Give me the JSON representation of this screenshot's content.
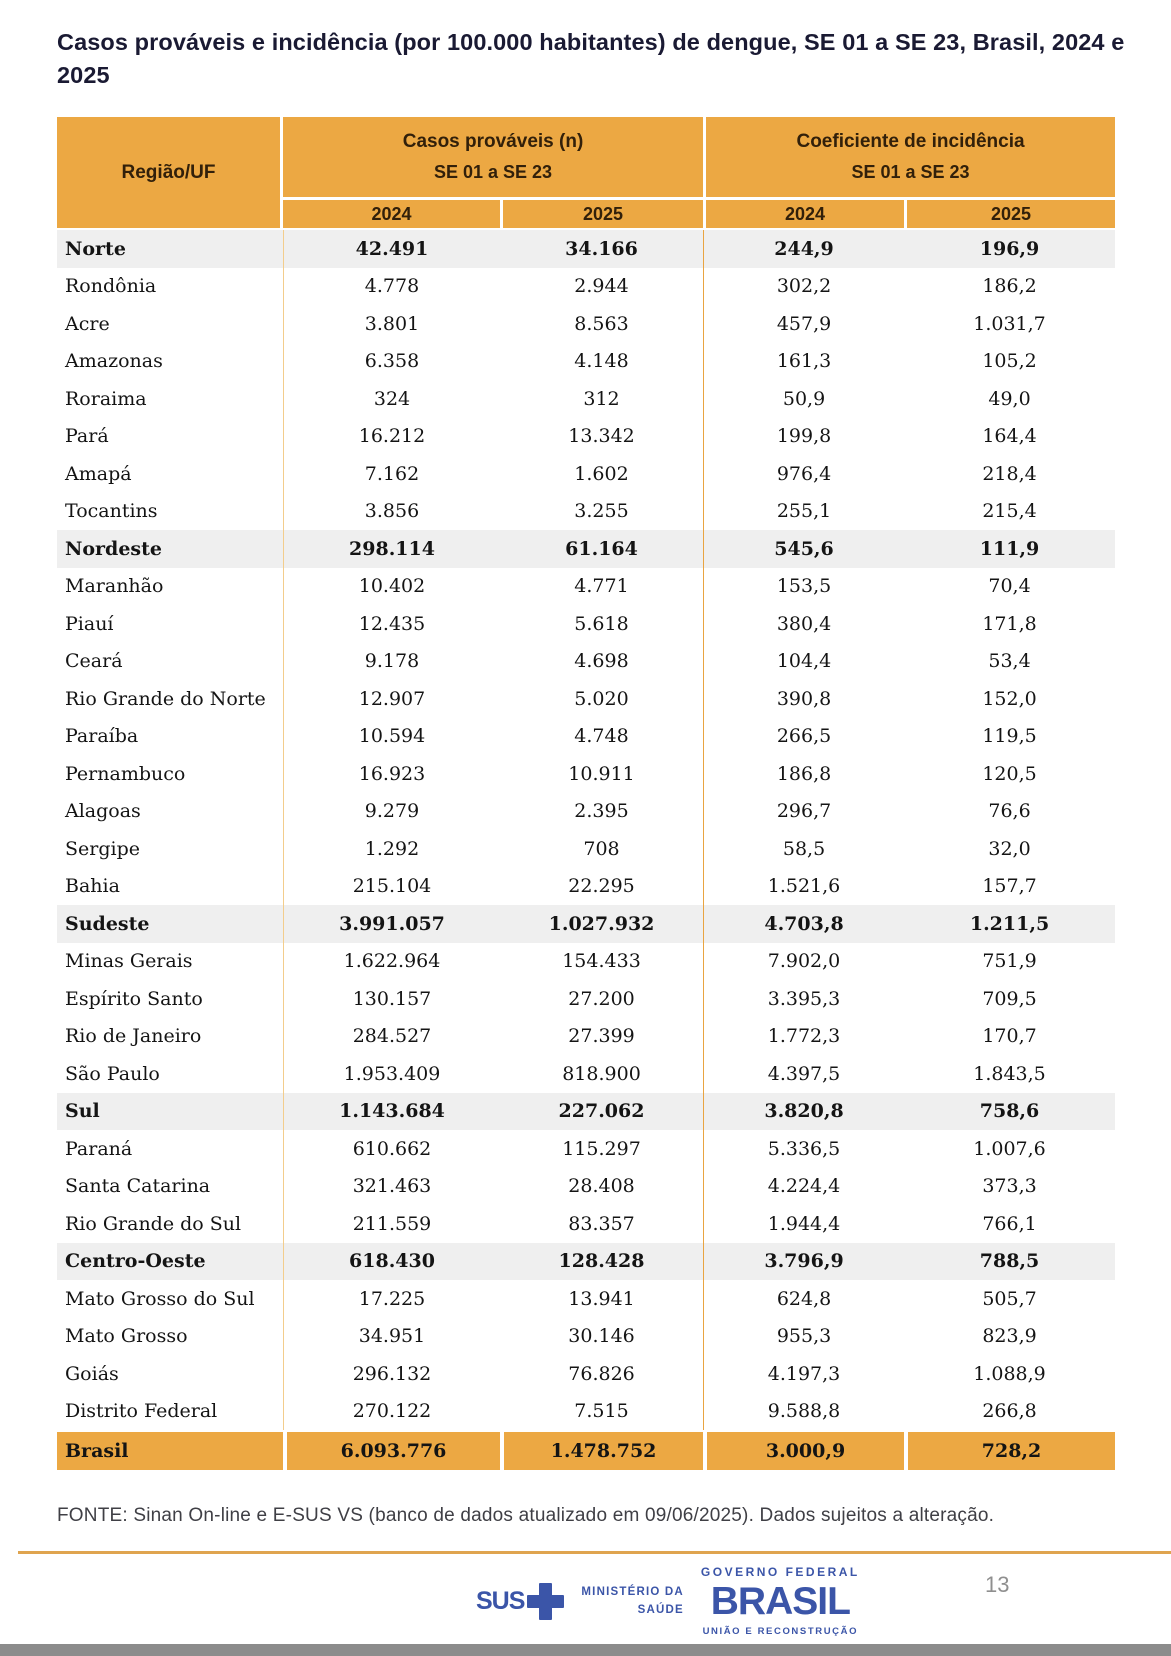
{
  "title": "Casos prováveis e incidência (por 100.000 habitantes) de dengue, SE 01 a SE 23, Brasil, 2024 e 2025",
  "table": {
    "col_region": "Região/UF",
    "group1_title": "Casos prováveis (n)",
    "group1_sub": "SE 01 a SE 23",
    "group2_title": "Coeficiente de incidência",
    "group2_sub": "SE 01 a SE 23",
    "years": [
      "2024",
      "2025",
      "2024",
      "2025"
    ],
    "rows": [
      {
        "id": "norte",
        "type": "region",
        "region": "Norte",
        "values": [
          "42.491",
          "34.166",
          "244,9",
          "196,9"
        ]
      },
      {
        "id": "rondonia",
        "type": "state",
        "region": "Rondônia",
        "values": [
          "4.778",
          "2.944",
          "302,2",
          "186,2"
        ]
      },
      {
        "id": "acre",
        "type": "state",
        "region": "Acre",
        "values": [
          "3.801",
          "8.563",
          "457,9",
          "1.031,7"
        ]
      },
      {
        "id": "amazonas",
        "type": "state",
        "region": "Amazonas",
        "values": [
          "6.358",
          "4.148",
          "161,3",
          "105,2"
        ]
      },
      {
        "id": "roraima",
        "type": "state",
        "region": "Roraima",
        "values": [
          "324",
          "312",
          "50,9",
          "49,0"
        ]
      },
      {
        "id": "para",
        "type": "state",
        "region": "Pará",
        "values": [
          "16.212",
          "13.342",
          "199,8",
          "164,4"
        ]
      },
      {
        "id": "amapa",
        "type": "state",
        "region": "Amapá",
        "values": [
          "7.162",
          "1.602",
          "976,4",
          "218,4"
        ]
      },
      {
        "id": "tocantins",
        "type": "state",
        "region": "Tocantins",
        "values": [
          "3.856",
          "3.255",
          "255,1",
          "215,4"
        ]
      },
      {
        "id": "nordeste",
        "type": "region",
        "region": "Nordeste",
        "values": [
          "298.114",
          "61.164",
          "545,6",
          "111,9"
        ]
      },
      {
        "id": "maranhao",
        "type": "state",
        "region": "Maranhão",
        "values": [
          "10.402",
          "4.771",
          "153,5",
          "70,4"
        ]
      },
      {
        "id": "piaui",
        "type": "state",
        "region": "Piauí",
        "values": [
          "12.435",
          "5.618",
          "380,4",
          "171,8"
        ]
      },
      {
        "id": "ceara",
        "type": "state",
        "region": "Ceará",
        "values": [
          "9.178",
          "4.698",
          "104,4",
          "53,4"
        ]
      },
      {
        "id": "rio-grande-do-norte",
        "type": "state",
        "region": "Rio Grande do Norte",
        "values": [
          "12.907",
          "5.020",
          "390,8",
          "152,0"
        ]
      },
      {
        "id": "paraiba",
        "type": "state",
        "region": "Paraíba",
        "values": [
          "10.594",
          "4.748",
          "266,5",
          "119,5"
        ]
      },
      {
        "id": "pernambuco",
        "type": "state",
        "region": "Pernambuco",
        "values": [
          "16.923",
          "10.911",
          "186,8",
          "120,5"
        ]
      },
      {
        "id": "alagoas",
        "type": "state",
        "region": "Alagoas",
        "values": [
          "9.279",
          "2.395",
          "296,7",
          "76,6"
        ]
      },
      {
        "id": "sergipe",
        "type": "state",
        "region": "Sergipe",
        "values": [
          "1.292",
          "708",
          "58,5",
          "32,0"
        ]
      },
      {
        "id": "bahia",
        "type": "state",
        "region": "Bahia",
        "values": [
          "215.104",
          "22.295",
          "1.521,6",
          "157,7"
        ]
      },
      {
        "id": "sudeste",
        "type": "region",
        "region": "Sudeste",
        "values": [
          "3.991.057",
          "1.027.932",
          "4.703,8",
          "1.211,5"
        ]
      },
      {
        "id": "minas-gerais",
        "type": "state",
        "region": "Minas Gerais",
        "values": [
          "1.622.964",
          "154.433",
          "7.902,0",
          "751,9"
        ]
      },
      {
        "id": "espirito-santo",
        "type": "state",
        "region": "Espírito Santo",
        "values": [
          "130.157",
          "27.200",
          "3.395,3",
          "709,5"
        ]
      },
      {
        "id": "rio-de-janeiro",
        "type": "state",
        "region": "Rio de Janeiro",
        "values": [
          "284.527",
          "27.399",
          "1.772,3",
          "170,7"
        ]
      },
      {
        "id": "sao-paulo",
        "type": "state",
        "region": "São Paulo",
        "values": [
          "1.953.409",
          "818.900",
          "4.397,5",
          "1.843,5"
        ]
      },
      {
        "id": "sul",
        "type": "region",
        "region": "Sul",
        "values": [
          "1.143.684",
          "227.062",
          "3.820,8",
          "758,6"
        ]
      },
      {
        "id": "parana",
        "type": "state",
        "region": "Paraná",
        "values": [
          "610.662",
          "115.297",
          "5.336,5",
          "1.007,6"
        ]
      },
      {
        "id": "santa-catarina",
        "type": "state",
        "region": "Santa Catarina",
        "values": [
          "321.463",
          "28.408",
          "4.224,4",
          "373,3"
        ]
      },
      {
        "id": "rio-grande-do-sul",
        "type": "state",
        "region": "Rio Grande do Sul",
        "values": [
          "211.559",
          "83.357",
          "1.944,4",
          "766,1"
        ]
      },
      {
        "id": "centro-oeste",
        "type": "region",
        "region": "Centro-Oeste",
        "values": [
          "618.430",
          "128.428",
          "3.796,9",
          "788,5"
        ]
      },
      {
        "id": "mato-grosso-do-sul",
        "type": "state",
        "region": "Mato Grosso do Sul",
        "values": [
          "17.225",
          "13.941",
          "624,8",
          "505,7"
        ]
      },
      {
        "id": "mato-grosso",
        "type": "state",
        "region": "Mato Grosso",
        "values": [
          "34.951",
          "30.146",
          "955,3",
          "823,9"
        ]
      },
      {
        "id": "goias",
        "type": "state",
        "region": "Goiás",
        "values": [
          "296.132",
          "76.826",
          "4.197,3",
          "1.088,9"
        ]
      },
      {
        "id": "distrito-federal",
        "type": "state",
        "region": "Distrito Federal",
        "values": [
          "270.122",
          "7.515",
          "9.588,8",
          "266,8"
        ]
      },
      {
        "id": "brasil",
        "type": "total",
        "region": "Brasil",
        "values": [
          "6.093.776",
          "1.478.752",
          "3.000,9",
          "728,2"
        ]
      }
    ]
  },
  "source_note": "FONTE: Sinan On-line e E-SUS VS (banco de dados atualizado em 09/06/2025). Dados sujeitos a alteração.",
  "footer": {
    "sus_label": "SUS",
    "ministry_line1": "MINISTÉRIO DA",
    "ministry_line2": "SAÚDE",
    "gov_federal": "GOVERNO FEDERAL",
    "brasil_label": "BRASIL",
    "uniao": "UNIÃO E RECONSTRUÇÃO",
    "page_number": "13"
  },
  "colors": {
    "accent_orange": "#ECA843",
    "rule_orange": "#DFA44F",
    "region_row_gray": "#EFEFEF",
    "header_text_brown": "#32200A",
    "title_navy": "#1A1A33",
    "logo_blue": "#3B55A8",
    "bottom_bar_gray": "#8C8C8C"
  }
}
